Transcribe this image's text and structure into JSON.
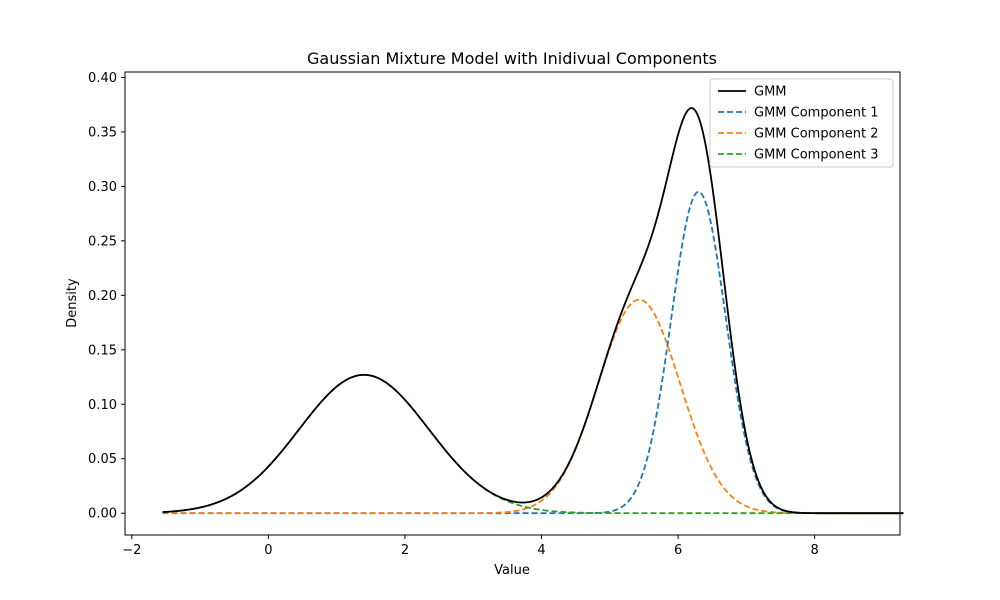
{
  "chart_data": {
    "type": "line",
    "title": "Gaussian Mixture Model with Inidivual Components",
    "xlabel": "Value",
    "ylabel": "Density",
    "xlim": [
      -2.1,
      9.25
    ],
    "ylim": [
      -0.02,
      0.405
    ],
    "xticks": [
      -2,
      0,
      2,
      4,
      6,
      8
    ],
    "xtick_labels": [
      "−2",
      "0",
      "2",
      "4",
      "6",
      "8"
    ],
    "yticks": [
      0.0,
      0.05,
      0.1,
      0.15,
      0.2,
      0.25,
      0.3,
      0.35,
      0.4
    ],
    "ytick_labels": [
      "0.00",
      "0.05",
      "0.10",
      "0.15",
      "0.20",
      "0.25",
      "0.30",
      "0.35",
      "0.40"
    ],
    "grid": false,
    "legend_position": "top-right",
    "x_range": [
      -1.55,
      9.3
    ],
    "components": [
      {
        "name": "GMM Component 1",
        "mean": 6.3,
        "sd": 0.4,
        "peak": 0.295,
        "color": "#1f77b4",
        "style": "dashed"
      },
      {
        "name": "GMM Component 2",
        "mean": 5.43,
        "sd": 0.6,
        "peak": 0.196,
        "color": "#ff7f0e",
        "style": "dashed"
      },
      {
        "name": "GMM Component 3",
        "mean": 1.4,
        "sd": 0.95,
        "peak": 0.127,
        "color": "#2ca02c",
        "style": "dashed"
      }
    ],
    "series": [
      {
        "name": "GMM",
        "color": "#000000",
        "style": "solid",
        "kind": "sum"
      },
      {
        "name": "GMM Component 1",
        "color": "#1f77b4",
        "style": "dashed",
        "kind": "component",
        "index": 0
      },
      {
        "name": "GMM Component 2",
        "color": "#ff7f0e",
        "style": "dashed",
        "kind": "component",
        "index": 1
      },
      {
        "name": "GMM Component 3",
        "color": "#2ca02c",
        "style": "dashed",
        "kind": "component",
        "index": 2
      }
    ]
  }
}
